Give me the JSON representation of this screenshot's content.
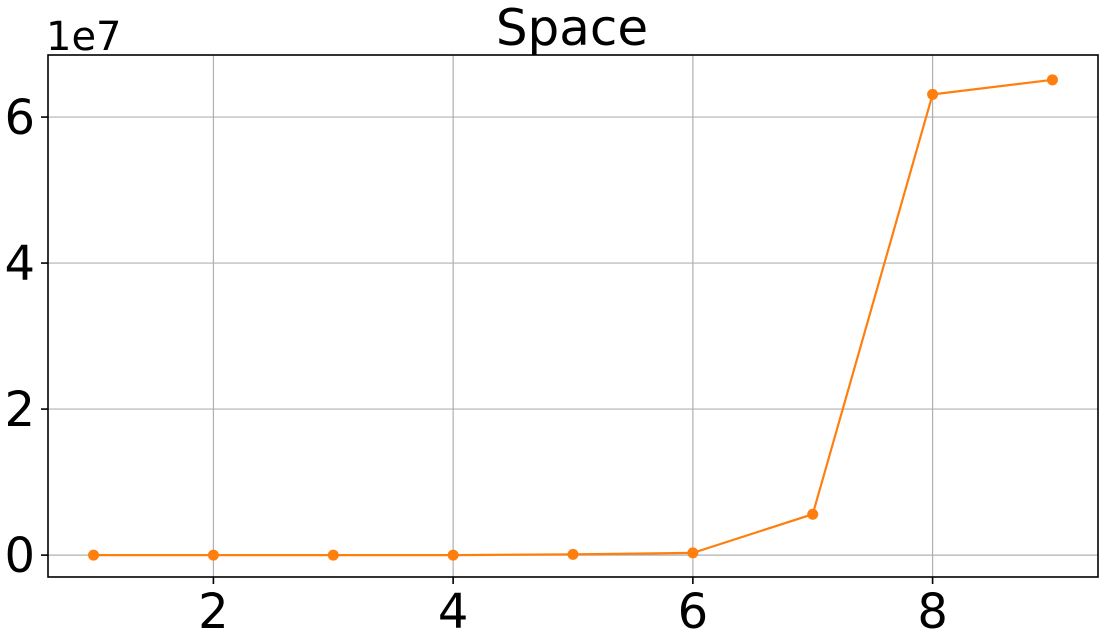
{
  "chart_data": {
    "type": "line",
    "title": "Space",
    "xlabel": "",
    "ylabel": "",
    "y_offset_label": "1e7",
    "xlim": [
      0.62,
      9.38
    ],
    "ylim": [
      -0.3,
      6.85
    ],
    "x_ticks": [
      2,
      4,
      6,
      8
    ],
    "y_ticks": [
      0,
      2,
      4,
      6
    ],
    "x_tick_labels": [
      "2",
      "4",
      "6",
      "8"
    ],
    "y_tick_labels": [
      "0",
      "2",
      "4",
      "6"
    ],
    "grid": true,
    "series": [
      {
        "color": "#ff7f0e",
        "x": [
          1,
          2,
          3,
          4,
          5,
          6,
          7,
          8,
          9
        ],
        "y": [
          0.0,
          0.0,
          0.0,
          0.0,
          0.01,
          0.03,
          0.56,
          6.31,
          6.51
        ]
      }
    ]
  }
}
